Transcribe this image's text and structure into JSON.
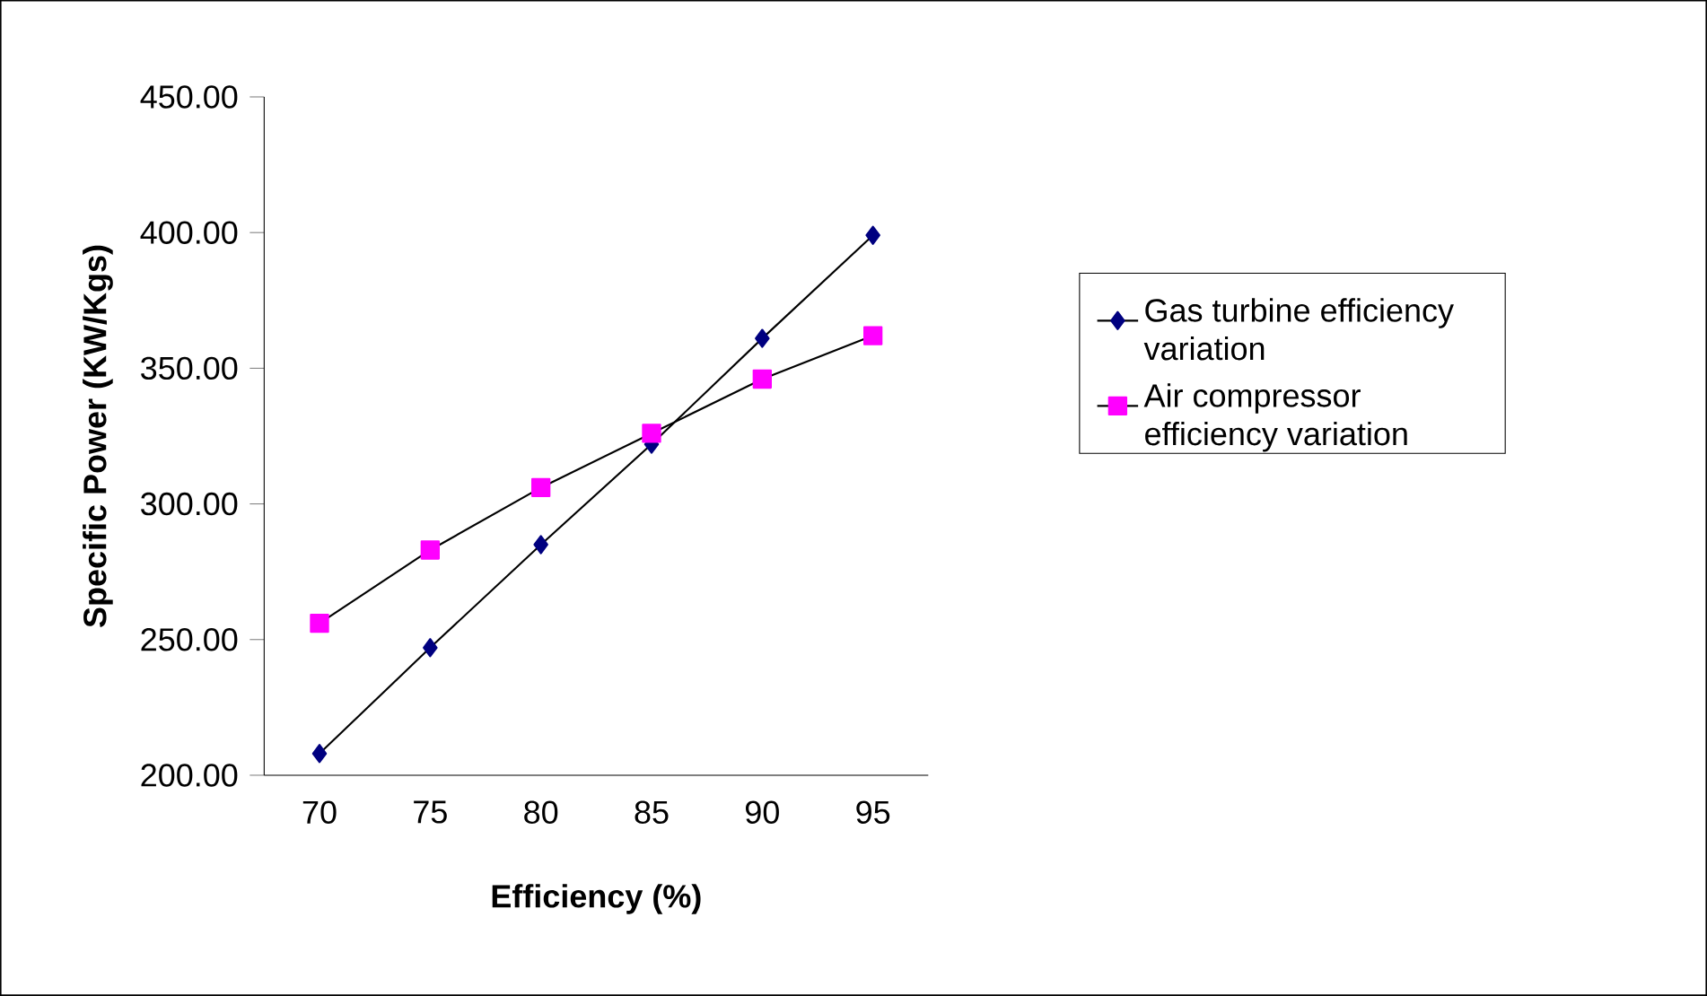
{
  "chart_data": {
    "type": "line",
    "xlabel": "Efficiency (%)",
    "ylabel": "Specific Power (KW/Kgs)",
    "categories": [
      "70",
      "75",
      "80",
      "85",
      "90",
      "95"
    ],
    "series": [
      {
        "name": "Gas turbine efficiency variation",
        "color": "#000080",
        "marker": "diamond",
        "values": [
          208,
          247,
          285,
          322,
          361,
          399
        ]
      },
      {
        "name": "Air compressor efficiency variation",
        "color": "#ff00ff",
        "marker": "square",
        "values": [
          256,
          283,
          306,
          326,
          346,
          362
        ]
      }
    ],
    "ylim": [
      200,
      450
    ],
    "yticks": [
      {
        "value": 200,
        "label": "200.00"
      },
      {
        "value": 250,
        "label": "250.00"
      },
      {
        "value": 300,
        "label": "300.00"
      },
      {
        "value": 350,
        "label": "350.00"
      },
      {
        "value": 400,
        "label": "400.00"
      },
      {
        "value": 450,
        "label": "450.00"
      }
    ],
    "legend": "right",
    "grid": false
  }
}
